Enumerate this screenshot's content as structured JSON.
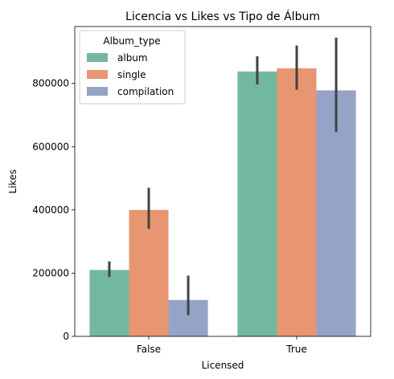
{
  "chart_data": {
    "type": "bar",
    "title": "Licencia vs Likes vs Tipo de Álbum",
    "xlabel": "Licensed",
    "ylabel": "Likes",
    "categories": [
      "False",
      "True"
    ],
    "ylim": [
      0,
      980000
    ],
    "yticks": [
      0,
      200000,
      400000,
      600000,
      800000
    ],
    "ytick_labels": [
      "0",
      "200000",
      "400000",
      "600000",
      "800000"
    ],
    "grid": false,
    "legend": {
      "title": "Album_type",
      "placement": "top-left"
    },
    "series": [
      {
        "name": "album",
        "color": "#72b8a0",
        "values": [
          210000,
          838000
        ],
        "error_low": [
          188000,
          797000
        ],
        "error_high": [
          237000,
          886000
        ]
      },
      {
        "name": "single",
        "color": "#e89672",
        "values": [
          400000,
          848000
        ],
        "error_low": [
          340000,
          780000
        ],
        "error_high": [
          470000,
          920000
        ]
      },
      {
        "name": "compilation",
        "color": "#95a3c6",
        "values": [
          115000,
          778000
        ],
        "error_low": [
          67000,
          647000
        ],
        "error_high": [
          192000,
          945000
        ]
      }
    ]
  }
}
